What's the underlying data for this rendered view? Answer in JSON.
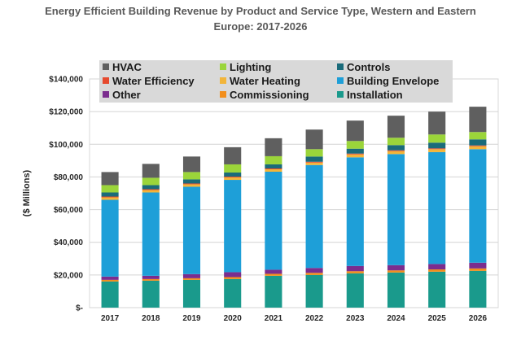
{
  "chart_data": {
    "type": "bar",
    "stacked": true,
    "title_line1": "Energy Efficient Building Revenue by Product and Service Type, Western and Eastern",
    "title_line2": "Europe: 2017-2026",
    "xlabel": "",
    "ylabel": "($ Millions)",
    "ylim": [
      0,
      140000
    ],
    "yticks": [
      0,
      20000,
      40000,
      60000,
      80000,
      100000,
      120000,
      140000
    ],
    "ytick_labels": [
      "$-",
      "$20,000",
      "$40,000",
      "$60,000",
      "$80,000",
      "$100,000",
      "$120,000",
      "$140,000"
    ],
    "grid": true,
    "legend_position": "top",
    "categories": [
      "2017",
      "2018",
      "2019",
      "2020",
      "2021",
      "2022",
      "2023",
      "2024",
      "2025",
      "2026"
    ],
    "series": [
      {
        "name": "Installation",
        "color": "#1a9a8c",
        "values": [
          16000,
          16500,
          17000,
          17500,
          19500,
          20000,
          21000,
          21500,
          22000,
          22500
        ]
      },
      {
        "name": "Commissioning",
        "color": "#f28e1c",
        "values": [
          1000,
          1000,
          1000,
          1200,
          1200,
          1300,
          1300,
          1300,
          1400,
          1500
        ]
      },
      {
        "name": "Other",
        "color": "#7b2d8e",
        "values": [
          2000,
          2000,
          2500,
          3000,
          2500,
          3000,
          3200,
          3200,
          3300,
          3500
        ]
      },
      {
        "name": "Building Envelope",
        "color": "#1e9fd8",
        "values": [
          47000,
          51000,
          53500,
          56500,
          60000,
          63000,
          66500,
          68000,
          68500,
          69500
        ]
      },
      {
        "name": "Water Heating",
        "color": "#f2b53a",
        "values": [
          1500,
          1500,
          1500,
          1500,
          1500,
          1500,
          1800,
          1800,
          1800,
          1800
        ]
      },
      {
        "name": "Water Efficiency",
        "color": "#e64a2e",
        "values": [
          500,
          500,
          500,
          500,
          500,
          500,
          500,
          500,
          500,
          500
        ]
      },
      {
        "name": "Controls",
        "color": "#1a6b7a",
        "values": [
          2500,
          2500,
          2500,
          2500,
          2500,
          3200,
          3000,
          3200,
          3500,
          3700
        ]
      },
      {
        "name": "Lighting",
        "color": "#9bd53a",
        "values": [
          4500,
          4500,
          4500,
          5000,
          5000,
          4500,
          4700,
          4500,
          5000,
          4500
        ]
      },
      {
        "name": "HVAC",
        "color": "#5f5f5f",
        "values": [
          8000,
          8500,
          9500,
          10500,
          11000,
          12000,
          12500,
          13500,
          14000,
          15500
        ]
      }
    ],
    "legend_layout": [
      [
        "HVAC",
        "Lighting",
        "Controls"
      ],
      [
        "Water Efficiency",
        "Water Heating",
        "Building Envelope"
      ],
      [
        "Other",
        "Commissioning",
        "Installation"
      ]
    ]
  }
}
